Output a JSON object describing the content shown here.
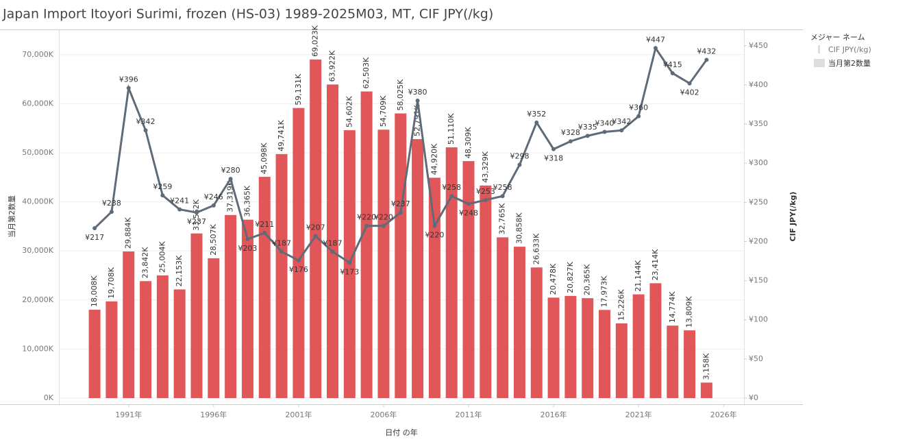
{
  "chart_data": {
    "type": "bar",
    "title": "Japan Import Itoyori Surimi, frozen (HS-03) 1989-2025M03, MT, CIF JPY(/kg)",
    "x_label": "日付 の年",
    "y_label": "当月第2数量",
    "y2_label": "CIF JPY(/kg)",
    "legend_title": "メジャー ネーム",
    "legend": "right",
    "grid": true,
    "x": [
      1989,
      1990,
      1991,
      1992,
      1993,
      1994,
      1995,
      1996,
      1997,
      1998,
      1999,
      2000,
      2001,
      2002,
      2003,
      2004,
      2005,
      2006,
      2007,
      2008,
      2009,
      2010,
      2011,
      2012,
      2013,
      2014,
      2015,
      2016,
      2017,
      2018,
      2019,
      2020,
      2021,
      2022,
      2023,
      2024,
      2025
    ],
    "xlim": [
      1986.9,
      2027.2
    ],
    "xticks": [
      {
        "value": 1991,
        "label": "1991年"
      },
      {
        "value": 1996,
        "label": "1996年"
      },
      {
        "value": 2001,
        "label": "2001年"
      },
      {
        "value": 2006,
        "label": "2006年"
      },
      {
        "value": 2011,
        "label": "2011年"
      },
      {
        "value": 2016,
        "label": "2016年"
      },
      {
        "value": 2021,
        "label": "2021年"
      },
      {
        "value": 2026,
        "label": "2026年"
      }
    ],
    "ylim": [
      0,
      75000
    ],
    "yticks": [
      {
        "value": 0,
        "label": "0K"
      },
      {
        "value": 10000,
        "label": "10,000K"
      },
      {
        "value": 20000,
        "label": "20,000K"
      },
      {
        "value": 30000,
        "label": "30,000K"
      },
      {
        "value": 40000,
        "label": "40,000K"
      },
      {
        "value": 50000,
        "label": "50,000K"
      },
      {
        "value": 60000,
        "label": "60,000K"
      },
      {
        "value": 70000,
        "label": "70,000K"
      }
    ],
    "y2lim": [
      0,
      470
    ],
    "y2ticks": [
      {
        "value": 0,
        "label": "¥0"
      },
      {
        "value": 50,
        "label": "¥50"
      },
      {
        "value": 100,
        "label": "¥100"
      },
      {
        "value": 150,
        "label": "¥150"
      },
      {
        "value": 200,
        "label": "¥200"
      },
      {
        "value": 250,
        "label": "¥250"
      },
      {
        "value": 300,
        "label": "¥300"
      },
      {
        "value": 350,
        "label": "¥350"
      },
      {
        "value": 400,
        "label": "¥400"
      },
      {
        "value": 450,
        "label": "¥450"
      }
    ],
    "series": [
      {
        "name": "当月第2数量",
        "type": "bar",
        "color": "#e15759",
        "values": [
          18008,
          19708,
          29884,
          23842,
          25004,
          22153,
          33562,
          28507,
          37319,
          36365,
          45098,
          49741,
          59131,
          69023,
          63922,
          54602,
          62503,
          54709,
          58025,
          52791,
          44920,
          51110,
          48309,
          43329,
          32765,
          30858,
          26633,
          20478,
          20827,
          20365,
          17973,
          15226,
          21144,
          23414,
          14774,
          13809,
          3158
        ],
        "value_labels": [
          "18,008K",
          "19,708K",
          "29,884K",
          "23,842K",
          "25,004K",
          "22,153K",
          "33,562K",
          "28,507K",
          "37,319K",
          "36,365K",
          "45,098K",
          "49,741K",
          "59,131K",
          "69,023K",
          "63,922K",
          "54,602K",
          "62,503K",
          "54,709K",
          "58,025K",
          "52,791K",
          "44,920K",
          "51,110K",
          "48,309K",
          "43,329K",
          "32,765K",
          "30,858K",
          "26,633K",
          "20,478K",
          "20,827K",
          "20,365K",
          "17,973K",
          "15,226K",
          "21,144K",
          "23,414K",
          "14,774K",
          "13,809K",
          "3,158K"
        ]
      },
      {
        "name": "CIF JPY(/kg)",
        "type": "line",
        "axis": "y2",
        "color": "#5f6b78",
        "values": [
          217,
          238,
          396,
          342,
          259,
          241,
          237,
          246,
          280,
          203,
          211,
          187,
          176,
          207,
          187,
          173,
          220,
          220,
          237,
          380,
          220,
          258,
          248,
          253,
          258,
          298,
          352,
          318,
          328,
          335,
          340,
          342,
          360,
          447,
          415,
          402,
          432
        ],
        "value_labels": [
          "¥217",
          "¥238",
          "¥396",
          "¥342",
          "¥259",
          "¥241",
          "¥237",
          "¥246",
          "¥280",
          "¥203",
          "¥211",
          "¥187",
          "¥176",
          "¥207",
          "¥187",
          "¥173",
          "¥220",
          "¥220",
          "¥237",
          "¥380",
          "¥220",
          "¥258",
          "¥248",
          "¥253",
          "¥258",
          "¥298",
          "¥352",
          "¥318",
          "¥328",
          "¥335",
          "¥340",
          "¥342",
          "¥360",
          "¥447",
          "¥415",
          "¥402",
          "¥432"
        ]
      }
    ]
  }
}
